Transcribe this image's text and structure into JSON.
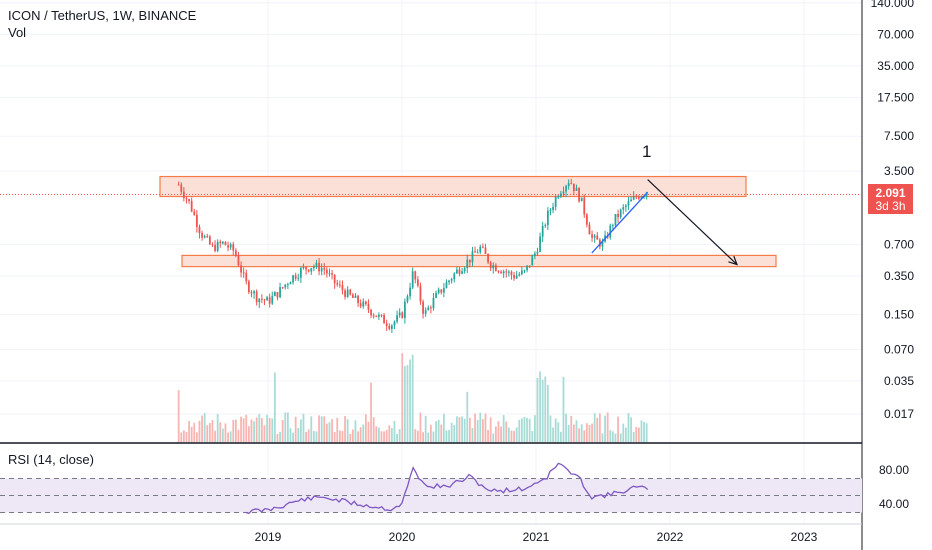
{
  "header": {
    "symbol_line": "ICON / TetherUS, 1W, BINANCE",
    "vol_label": "Vol"
  },
  "rsi": {
    "label": "RSI (14, close)",
    "ticks": [
      "80.00",
      "40.00"
    ]
  },
  "price_badge": {
    "price": "2.091",
    "countdown": "3d 3h"
  },
  "annotation": "1",
  "colors": {
    "up": "#26a69a",
    "down": "#ef5350",
    "zone_fill": "#fbe0d8",
    "zone_stroke": "#f57c4a",
    "trend_line": "#2962ff",
    "rsi_line": "#7e57c2",
    "rsi_band": "#ede7f6",
    "badge": "#ef5350"
  },
  "chart_data": {
    "type": "candlestick",
    "y_scale": "log",
    "ylim": [
      0.01,
      140
    ],
    "y_ticks": [
      "140.000",
      "70.000",
      "35.000",
      "17.500",
      "7.500",
      "3.500",
      "0.700",
      "0.350",
      "0.150",
      "0.070",
      "0.035",
      "0.017"
    ],
    "x_ticks": [
      "2019",
      "2020",
      "2021",
      "2022",
      "2023"
    ],
    "last_price": 2.091,
    "price_path": [
      [
        "2018-05",
        2.6
      ],
      [
        "2018-06",
        1.7
      ],
      [
        "2018-07",
        0.9
      ],
      [
        "2018-08",
        0.65
      ],
      [
        "2018-09",
        0.72
      ],
      [
        "2018-10",
        0.6
      ],
      [
        "2018-11",
        0.3
      ],
      [
        "2018-12",
        0.22
      ],
      [
        "2019-01",
        0.2
      ],
      [
        "2019-02",
        0.25
      ],
      [
        "2019-03",
        0.33
      ],
      [
        "2019-04",
        0.4
      ],
      [
        "2019-05",
        0.44
      ],
      [
        "2019-06",
        0.41
      ],
      [
        "2019-07",
        0.3
      ],
      [
        "2019-08",
        0.24
      ],
      [
        "2019-09",
        0.2
      ],
      [
        "2019-10",
        0.17
      ],
      [
        "2019-11",
        0.14
      ],
      [
        "2019-12",
        0.12
      ],
      [
        "2020-01",
        0.15
      ],
      [
        "2020-02",
        0.38
      ],
      [
        "2020-03",
        0.15
      ],
      [
        "2020-04",
        0.22
      ],
      [
        "2020-05",
        0.3
      ],
      [
        "2020-06",
        0.4
      ],
      [
        "2020-07",
        0.5
      ],
      [
        "2020-08",
        0.65
      ],
      [
        "2020-09",
        0.45
      ],
      [
        "2020-10",
        0.4
      ],
      [
        "2020-11",
        0.35
      ],
      [
        "2020-12",
        0.38
      ],
      [
        "2021-01",
        0.6
      ],
      [
        "2021-02",
        1.3
      ],
      [
        "2021-03",
        2.2
      ],
      [
        "2021-04",
        2.9
      ],
      [
        "2021-05",
        1.9
      ],
      [
        "2021-06",
        0.8
      ],
      [
        "2021-07",
        0.7
      ],
      [
        "2021-08",
        1.2
      ],
      [
        "2021-09",
        1.6
      ],
      [
        "2021-10",
        2.0
      ],
      [
        "2021-11",
        2.3
      ]
    ],
    "resistance_zone": [
      2.0,
      3.1
    ],
    "support_zone": [
      0.43,
      0.55
    ],
    "projection": {
      "from": [
        "2021-11",
        2.9
      ],
      "to": [
        "2022-07",
        0.45
      ]
    },
    "trendline": {
      "from": [
        "2021-06",
        0.58
      ],
      "to": [
        "2021-11",
        2.2
      ]
    },
    "rsi_ylim": [
      30,
      95
    ],
    "rsi_band": [
      30,
      70
    ],
    "rsi_path": [
      [
        "2018-11",
        31
      ],
      [
        "2019-01",
        33
      ],
      [
        "2019-04",
        45
      ],
      [
        "2019-06",
        48
      ],
      [
        "2019-09",
        40
      ],
      [
        "2019-12",
        34
      ],
      [
        "2020-01",
        40
      ],
      [
        "2020-02",
        82
      ],
      [
        "2020-03",
        62
      ],
      [
        "2020-05",
        60
      ],
      [
        "2020-07",
        72
      ],
      [
        "2020-09",
        55
      ],
      [
        "2020-12",
        58
      ],
      [
        "2021-02",
        72
      ],
      [
        "2021-03",
        88
      ],
      [
        "2021-05",
        68
      ],
      [
        "2021-06",
        48
      ],
      [
        "2021-08",
        52
      ],
      [
        "2021-10",
        60
      ],
      [
        "2021-11",
        57
      ]
    ]
  }
}
